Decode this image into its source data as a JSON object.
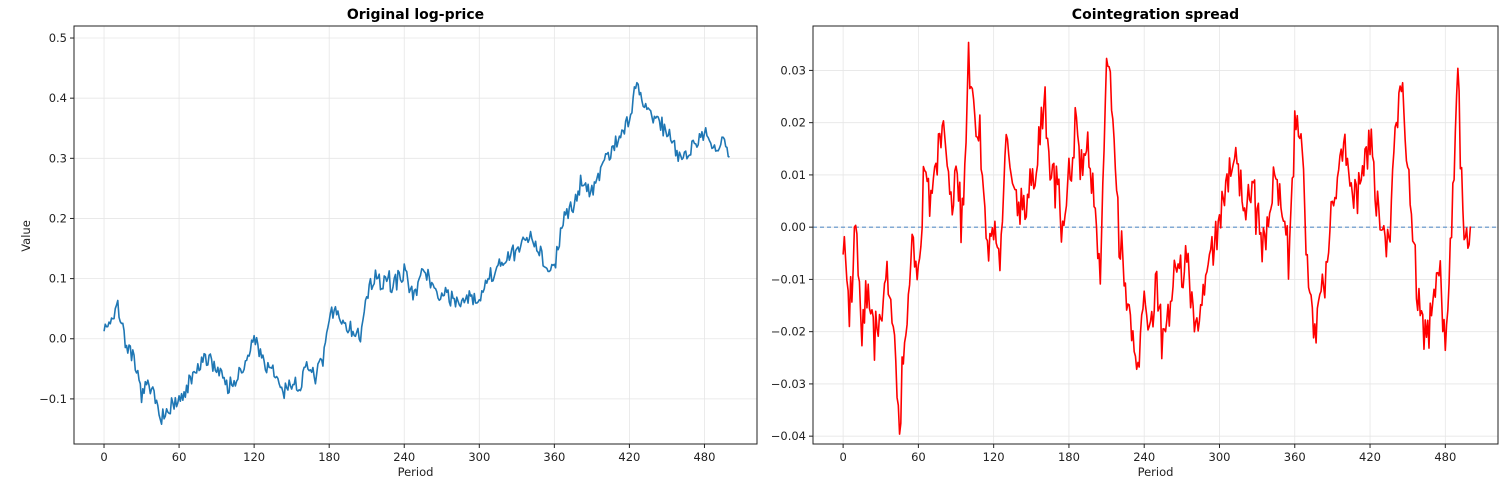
{
  "chart_data": [
    {
      "type": "line",
      "title": "Original log-price",
      "xlabel": "Period",
      "ylabel": "Value",
      "xlim": [
        -24,
        522
      ],
      "ylim": [
        -0.175,
        0.52
      ],
      "xticks": [
        0,
        60,
        120,
        180,
        240,
        300,
        360,
        420,
        480
      ],
      "yticks": [
        -0.1,
        0.0,
        0.1,
        0.2,
        0.3,
        0.4,
        0.5
      ],
      "ytick_labels": [
        "−0.1",
        "0.0",
        "0.1",
        "0.2",
        "0.3",
        "0.4",
        "0.5"
      ],
      "grid": true,
      "series": [
        {
          "color": "#1f77b4",
          "noise": 0.012,
          "seed": 7,
          "anchors": [
            [
              0,
              0.02
            ],
            [
              5,
              0.03
            ],
            [
              10,
              0.05
            ],
            [
              13,
              0.04
            ],
            [
              18,
              -0.01
            ],
            [
              25,
              -0.05
            ],
            [
              30,
              -0.09
            ],
            [
              36,
              -0.08
            ],
            [
              40,
              -0.1
            ],
            [
              45,
              -0.12
            ],
            [
              50,
              -0.13
            ],
            [
              55,
              -0.11
            ],
            [
              60,
              -0.11
            ],
            [
              65,
              -0.09
            ],
            [
              70,
              -0.07
            ],
            [
              75,
              -0.05
            ],
            [
              80,
              -0.04
            ],
            [
              85,
              -0.03
            ],
            [
              90,
              -0.05
            ],
            [
              95,
              -0.06
            ],
            [
              100,
              -0.08
            ],
            [
              105,
              -0.07
            ],
            [
              110,
              -0.06
            ],
            [
              115,
              -0.03
            ],
            [
              120,
              0.0
            ],
            [
              125,
              -0.02
            ],
            [
              130,
              -0.05
            ],
            [
              135,
              -0.06
            ],
            [
              140,
              -0.07
            ],
            [
              145,
              -0.09
            ],
            [
              150,
              -0.07
            ],
            [
              155,
              -0.08
            ],
            [
              160,
              -0.06
            ],
            [
              165,
              -0.05
            ],
            [
              170,
              -0.06
            ],
            [
              175,
              -0.04
            ],
            [
              180,
              0.03
            ],
            [
              185,
              0.05
            ],
            [
              190,
              0.03
            ],
            [
              195,
              0.02
            ],
            [
              200,
              0.01
            ],
            [
              205,
              0.0
            ],
            [
              210,
              0.07
            ],
            [
              215,
              0.1
            ],
            [
              220,
              0.09
            ],
            [
              225,
              0.1
            ],
            [
              230,
              0.09
            ],
            [
              235,
              0.1
            ],
            [
              240,
              0.11
            ],
            [
              245,
              0.09
            ],
            [
              250,
              0.08
            ],
            [
              255,
              0.11
            ],
            [
              260,
              0.1
            ],
            [
              265,
              0.08
            ],
            [
              270,
              0.07
            ],
            [
              275,
              0.08
            ],
            [
              280,
              0.06
            ],
            [
              285,
              0.05
            ],
            [
              290,
              0.07
            ],
            [
              295,
              0.06
            ],
            [
              300,
              0.07
            ],
            [
              305,
              0.09
            ],
            [
              310,
              0.1
            ],
            [
              315,
              0.12
            ],
            [
              320,
              0.13
            ],
            [
              325,
              0.14
            ],
            [
              330,
              0.14
            ],
            [
              335,
              0.16
            ],
            [
              340,
              0.17
            ],
            [
              345,
              0.16
            ],
            [
              350,
              0.14
            ],
            [
              355,
              0.11
            ],
            [
              360,
              0.12
            ],
            [
              365,
              0.17
            ],
            [
              370,
              0.21
            ],
            [
              375,
              0.23
            ],
            [
              380,
              0.25
            ],
            [
              385,
              0.26
            ],
            [
              390,
              0.25
            ],
            [
              395,
              0.27
            ],
            [
              400,
              0.3
            ],
            [
              405,
              0.31
            ],
            [
              410,
              0.33
            ],
            [
              415,
              0.35
            ],
            [
              420,
              0.36
            ],
            [
              425,
              0.42
            ],
            [
              430,
              0.4
            ],
            [
              435,
              0.38
            ],
            [
              440,
              0.37
            ],
            [
              445,
              0.36
            ],
            [
              450,
              0.34
            ],
            [
              455,
              0.33
            ],
            [
              460,
              0.31
            ],
            [
              465,
              0.3
            ],
            [
              470,
              0.32
            ],
            [
              475,
              0.33
            ],
            [
              480,
              0.35
            ],
            [
              485,
              0.32
            ],
            [
              490,
              0.31
            ],
            [
              495,
              0.33
            ],
            [
              500,
              0.31
            ]
          ]
        }
      ]
    },
    {
      "type": "line",
      "title": "Cointegration spread",
      "xlabel": "Period",
      "ylabel": "",
      "xlim": [
        -24,
        522
      ],
      "ylim": [
        -0.0415,
        0.0385
      ],
      "xticks": [
        0,
        60,
        120,
        180,
        240,
        300,
        360,
        420,
        480
      ],
      "yticks": [
        -0.04,
        -0.03,
        -0.02,
        -0.01,
        0.0,
        0.01,
        0.02,
        0.03
      ],
      "ytick_labels": [
        "−0.04",
        "−0.03",
        "−0.02",
        "−0.01",
        "0.00",
        "0.01",
        "0.02",
        "0.03"
      ],
      "grid": true,
      "hline": {
        "y": 0.0,
        "style": "dashed",
        "color": "#5b8fc7"
      },
      "series": [
        {
          "color": "#ff0000",
          "noise": 0.0035,
          "seed": 19,
          "anchors": [
            [
              0,
              -0.002
            ],
            [
              5,
              -0.015
            ],
            [
              10,
              0.0
            ],
            [
              15,
              -0.02
            ],
            [
              20,
              -0.01
            ],
            [
              25,
              -0.02
            ],
            [
              30,
              -0.018
            ],
            [
              35,
              -0.01
            ],
            [
              40,
              -0.02
            ],
            [
              45,
              -0.036
            ],
            [
              50,
              -0.02
            ],
            [
              55,
              -0.005
            ],
            [
              60,
              -0.01
            ],
            [
              65,
              0.012
            ],
            [
              70,
              0.005
            ],
            [
              75,
              0.015
            ],
            [
              80,
              0.018
            ],
            [
              85,
              0.008
            ],
            [
              90,
              0.01
            ],
            [
              95,
              0.0
            ],
            [
              100,
              0.03
            ],
            [
              105,
              0.02
            ],
            [
              110,
              0.015
            ],
            [
              115,
              -0.005
            ],
            [
              120,
              0.0
            ],
            [
              125,
              -0.008
            ],
            [
              130,
              0.015
            ],
            [
              135,
              0.01
            ],
            [
              140,
              0.005
            ],
            [
              145,
              0.002
            ],
            [
              150,
              0.008
            ],
            [
              155,
              0.012
            ],
            [
              160,
              0.025
            ],
            [
              165,
              0.01
            ],
            [
              170,
              0.008
            ],
            [
              175,
              0.0
            ],
            [
              180,
              0.01
            ],
            [
              185,
              0.02
            ],
            [
              190,
              0.01
            ],
            [
              195,
              0.015
            ],
            [
              200,
              0.005
            ],
            [
              205,
              -0.01
            ],
            [
              210,
              0.033
            ],
            [
              215,
              0.02
            ],
            [
              220,
              0.0
            ],
            [
              225,
              -0.01
            ],
            [
              230,
              -0.02
            ],
            [
              235,
              -0.025
            ],
            [
              240,
              -0.015
            ],
            [
              245,
              -0.02
            ],
            [
              250,
              -0.01
            ],
            [
              255,
              -0.025
            ],
            [
              260,
              -0.015
            ],
            [
              265,
              -0.005
            ],
            [
              270,
              -0.01
            ],
            [
              275,
              -0.005
            ],
            [
              280,
              -0.02
            ],
            [
              285,
              -0.015
            ],
            [
              290,
              -0.01
            ],
            [
              295,
              -0.005
            ],
            [
              300,
              0.0
            ],
            [
              305,
              0.008
            ],
            [
              310,
              0.012
            ],
            [
              315,
              0.01
            ],
            [
              320,
              0.005
            ],
            [
              325,
              0.008
            ],
            [
              330,
              0.0
            ],
            [
              335,
              -0.003
            ],
            [
              340,
              0.003
            ],
            [
              345,
              0.01
            ],
            [
              350,
              0.005
            ],
            [
              355,
              -0.005
            ],
            [
              360,
              0.02
            ],
            [
              365,
              0.018
            ],
            [
              370,
              -0.005
            ],
            [
              375,
              -0.02
            ],
            [
              380,
              -0.015
            ],
            [
              385,
              -0.008
            ],
            [
              390,
              0.005
            ],
            [
              395,
              0.01
            ],
            [
              400,
              0.015
            ],
            [
              405,
              0.008
            ],
            [
              410,
              0.005
            ],
            [
              415,
              0.012
            ],
            [
              420,
              0.018
            ],
            [
              425,
              0.005
            ],
            [
              430,
              0.0
            ],
            [
              435,
              -0.005
            ],
            [
              440,
              0.02
            ],
            [
              445,
              0.028
            ],
            [
              450,
              0.01
            ],
            [
              455,
              -0.005
            ],
            [
              460,
              -0.015
            ],
            [
              465,
              -0.02
            ],
            [
              470,
              -0.015
            ],
            [
              475,
              -0.005
            ],
            [
              480,
              -0.02
            ],
            [
              485,
              0.0
            ],
            [
              490,
              0.03
            ],
            [
              495,
              -0.005
            ],
            [
              500,
              -0.002
            ]
          ]
        }
      ]
    }
  ]
}
